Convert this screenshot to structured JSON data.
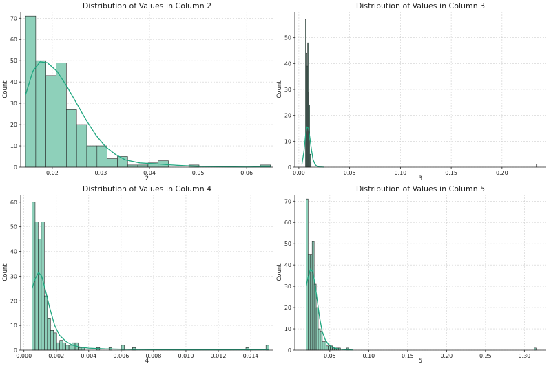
{
  "colors": {
    "bar_fill": "#8ed0ba",
    "bar_edge": "#222222",
    "kde": "#1fa67f",
    "grid": "#cfcfcf"
  },
  "chart_data": [
    {
      "type": "bar",
      "subtype": "histogram_with_kde",
      "title": "Distribution of Values in Column 2",
      "xlabel": "2",
      "ylabel": "Count",
      "xlim": [
        0.0135,
        0.0655
      ],
      "ylim": [
        0,
        73
      ],
      "xticks": [
        0.02,
        0.03,
        0.04,
        0.05,
        0.06
      ],
      "xtick_labels": [
        "0.02",
        "0.03",
        "0.04",
        "0.05",
        "0.06"
      ],
      "yticks": [
        0,
        10,
        20,
        30,
        40,
        50,
        60,
        70
      ],
      "ytick_labels": [
        "0",
        "10",
        "20",
        "30",
        "40",
        "50",
        "60",
        "70"
      ],
      "grid": true,
      "bin_edges": [
        0.0145,
        0.0166,
        0.0187,
        0.0208,
        0.0229,
        0.025,
        0.0271,
        0.0292,
        0.0313,
        0.0334,
        0.0355,
        0.0376,
        0.0397,
        0.0418,
        0.0439,
        0.046,
        0.0481,
        0.0502,
        0.0523,
        0.0544,
        0.0565,
        0.0586,
        0.0607,
        0.0628,
        0.0649
      ],
      "values": [
        71,
        50,
        43,
        49,
        27,
        20,
        10,
        10,
        4,
        5,
        1,
        1,
        2,
        3,
        0,
        0,
        1,
        0,
        0,
        0,
        0,
        0,
        0,
        1
      ],
      "kde": {
        "x": [
          0.0145,
          0.016,
          0.0175,
          0.019,
          0.021,
          0.023,
          0.025,
          0.027,
          0.029,
          0.031,
          0.033,
          0.035,
          0.038,
          0.041,
          0.044,
          0.047,
          0.05,
          0.055,
          0.06,
          0.0649
        ],
        "y": [
          34,
          45,
          49.5,
          49,
          45,
          38,
          30,
          22,
          15,
          9.5,
          6,
          3.5,
          2,
          1.6,
          1.1,
          0.7,
          0.4,
          0.15,
          0.05,
          0.2
        ]
      }
    },
    {
      "type": "bar",
      "subtype": "histogram_with_kde",
      "title": "Distribution of Values in Column 3",
      "xlabel": "3",
      "ylabel": "Count",
      "xlim": [
        -0.004,
        0.2435
      ],
      "ylim": [
        0,
        60
      ],
      "xticks": [
        0.0,
        0.05,
        0.1,
        0.15,
        0.2
      ],
      "xtick_labels": [
        "0.00",
        "0.05",
        "0.10",
        "0.15",
        "0.20"
      ],
      "yticks": [
        0,
        10,
        20,
        30,
        40,
        50
      ],
      "ytick_labels": [
        "0",
        "10",
        "20",
        "30",
        "40",
        "50"
      ],
      "grid": true,
      "bin_edges": [
        0.0065,
        0.0072,
        0.0079,
        0.0086,
        0.0093,
        0.01,
        0.0107,
        0.0114,
        0.0121
      ],
      "values": [
        57,
        44,
        39,
        48,
        29,
        24,
        5,
        2
      ],
      "extra_bars": [
        {
          "x0": 0.2338,
          "x1": 0.2345,
          "value": 1
        }
      ],
      "kde": {
        "x": [
          0.003,
          0.005,
          0.0065,
          0.008,
          0.0095,
          0.011,
          0.0125,
          0.014,
          0.016,
          0.018,
          0.02,
          0.025
        ],
        "y": [
          1,
          6,
          12,
          15.5,
          15,
          11,
          6.5,
          3,
          1,
          0.3,
          0.1,
          0
        ]
      }
    },
    {
      "type": "bar",
      "subtype": "histogram_with_kde",
      "title": "Distribution of Values in Column 4",
      "xlabel": "4",
      "ylabel": "Count",
      "xlim": [
        -0.0002,
        0.0154
      ],
      "ylim": [
        0,
        63
      ],
      "xticks": [
        0.0,
        0.002,
        0.004,
        0.006,
        0.008,
        0.01,
        0.012,
        0.014
      ],
      "xtick_labels": [
        "0.000",
        "0.002",
        "0.004",
        "0.006",
        "0.008",
        "0.010",
        "0.012",
        "0.014"
      ],
      "yticks": [
        0,
        10,
        20,
        30,
        40,
        50,
        60
      ],
      "ytick_labels": [
        "0",
        "10",
        "20",
        "30",
        "40",
        "50",
        "60"
      ],
      "grid": true,
      "bin_edges": [
        0.0005,
        0.00069,
        0.00088,
        0.00107,
        0.00126,
        0.00145,
        0.00164,
        0.00183,
        0.00202,
        0.00221,
        0.0024,
        0.00259,
        0.00278,
        0.00297,
        0.00316,
        0.00335,
        0.00354,
        0.00373,
        0.00392,
        0.00411,
        0.0043,
        0.00449,
        0.00468,
        0.00487,
        0.00506,
        0.00525,
        0.00544,
        0.00563,
        0.00582,
        0.00601,
        0.0062,
        0.00639,
        0.00658,
        0.00677,
        0.00696,
        0.00715,
        0.00734,
        0.00753,
        0.00772,
        0.00791,
        0.0081,
        0.00829,
        0.00848,
        0.00867,
        0.00886,
        0.00905,
        0.00924,
        0.00943,
        0.00962,
        0.00981,
        0.01,
        0.01019,
        0.01038,
        0.01057,
        0.01076,
        0.01095,
        0.01114,
        0.01133,
        0.01152,
        0.01171,
        0.0119,
        0.01209,
        0.01228,
        0.01247,
        0.01266,
        0.01285,
        0.01304,
        0.01323,
        0.01342,
        0.01361,
        0.0138,
        0.01399,
        0.01418,
        0.01437,
        0.01456,
        0.01475,
        0.01494,
        0.01513
      ],
      "values": [
        60,
        52,
        45,
        52,
        22,
        13,
        8,
        7,
        3,
        4,
        3,
        2,
        2,
        3,
        3,
        1,
        1,
        0,
        0,
        0,
        0,
        1,
        0,
        0,
        0,
        1,
        0,
        0,
        0,
        2,
        0,
        0,
        0,
        0,
        0,
        0,
        0,
        0,
        0,
        0,
        0,
        0,
        0,
        0,
        0,
        0,
        0,
        0,
        0,
        0,
        0,
        0,
        0,
        0,
        0,
        0,
        0,
        0,
        0,
        0,
        0,
        0,
        0,
        0,
        0,
        0,
        0,
        0,
        0,
        0,
        0,
        0,
        0,
        0,
        0,
        0,
        2
      ],
      "extra_bars": [
        {
          "x0": 0.0137,
          "x1": 0.0139,
          "value": 1
        },
        {
          "x0": 0.0067,
          "x1": 0.0069,
          "value": 1
        }
      ],
      "kde": {
        "x": [
          0.0005,
          0.0007,
          0.0009,
          0.0011,
          0.0013,
          0.0016,
          0.0019,
          0.0022,
          0.0026,
          0.003,
          0.0035,
          0.004,
          0.005,
          0.006,
          0.008,
          0.01,
          0.012,
          0.0151
        ],
        "y": [
          25,
          29,
          31.5,
          30,
          25,
          17,
          10,
          6,
          3.5,
          2,
          1.2,
          0.8,
          0.5,
          0.4,
          0.2,
          0.1,
          0.1,
          0.2
        ]
      }
    },
    {
      "type": "bar",
      "subtype": "histogram_with_kde",
      "title": "Distribution of Values in Column 5",
      "xlabel": "5",
      "ylabel": "Count",
      "xlim": [
        0.005,
        0.328
      ],
      "ylim": [
        0,
        73
      ],
      "xticks": [
        0.05,
        0.1,
        0.15,
        0.2,
        0.25,
        0.3
      ],
      "xtick_labels": [
        "0.05",
        "0.10",
        "0.15",
        "0.20",
        "0.25",
        "0.30"
      ],
      "yticks": [
        0,
        10,
        20,
        30,
        40,
        50,
        60,
        70
      ],
      "ytick_labels": [
        "0",
        "10",
        "20",
        "30",
        "40",
        "50",
        "60",
        "70"
      ],
      "grid": true,
      "bin_edges": [
        0.0195,
        0.0221,
        0.0247,
        0.0273,
        0.0299,
        0.0325,
        0.0351,
        0.0377,
        0.0403,
        0.0429,
        0.0455,
        0.0481,
        0.0507,
        0.0533,
        0.0559,
        0.0585,
        0.0611,
        0.0637,
        0.0663,
        0.0689,
        0.0715,
        0.0741
      ],
      "values": [
        71,
        45,
        45,
        51,
        31,
        20,
        10,
        9,
        4,
        4,
        2,
        2,
        2,
        1,
        1,
        1,
        1,
        0,
        0,
        0,
        1
      ],
      "extra_bars": [
        {
          "x0": 0.3125,
          "x1": 0.3151,
          "value": 1
        }
      ],
      "kde": {
        "x": [
          0.0195,
          0.022,
          0.025,
          0.028,
          0.031,
          0.034,
          0.037,
          0.04,
          0.044,
          0.048,
          0.053,
          0.06,
          0.07,
          0.08
        ],
        "y": [
          30,
          34,
          38,
          37,
          31,
          23,
          15,
          9,
          5,
          2.8,
          1.4,
          0.6,
          0.2,
          0.05
        ]
      }
    }
  ]
}
